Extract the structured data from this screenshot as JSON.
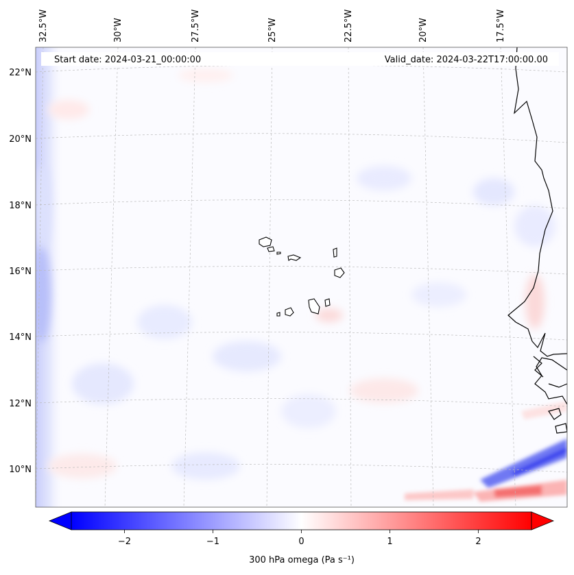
{
  "map": {
    "start_label": "Start date: 2024-03-21_00:00:00",
    "valid_label": "Valid_date: 2024-03-22T17:00:00.00",
    "lon_labels": [
      "32.5°W",
      "30°W",
      "27.5°W",
      "25°W",
      "22.5°W",
      "20°W",
      "17.5°W"
    ],
    "lat_labels": [
      "22°N",
      "20°N",
      "18°N",
      "16°N",
      "14°N",
      "12°N",
      "10°N"
    ]
  },
  "colorbar": {
    "label": "300 hPa omega (Pa s⁻¹)",
    "ticks": [
      "−2",
      "−1",
      "0",
      "1",
      "2"
    ],
    "tick_values": [
      -2,
      -1,
      0,
      1,
      2
    ],
    "min": -2.6,
    "max": 2.6,
    "color_low": "#0000ff",
    "color_mid": "#ffffff",
    "color_high": "#ff0000"
  },
  "colors": {
    "coastline": "#000000",
    "gridline": "#bbbbbb"
  }
}
